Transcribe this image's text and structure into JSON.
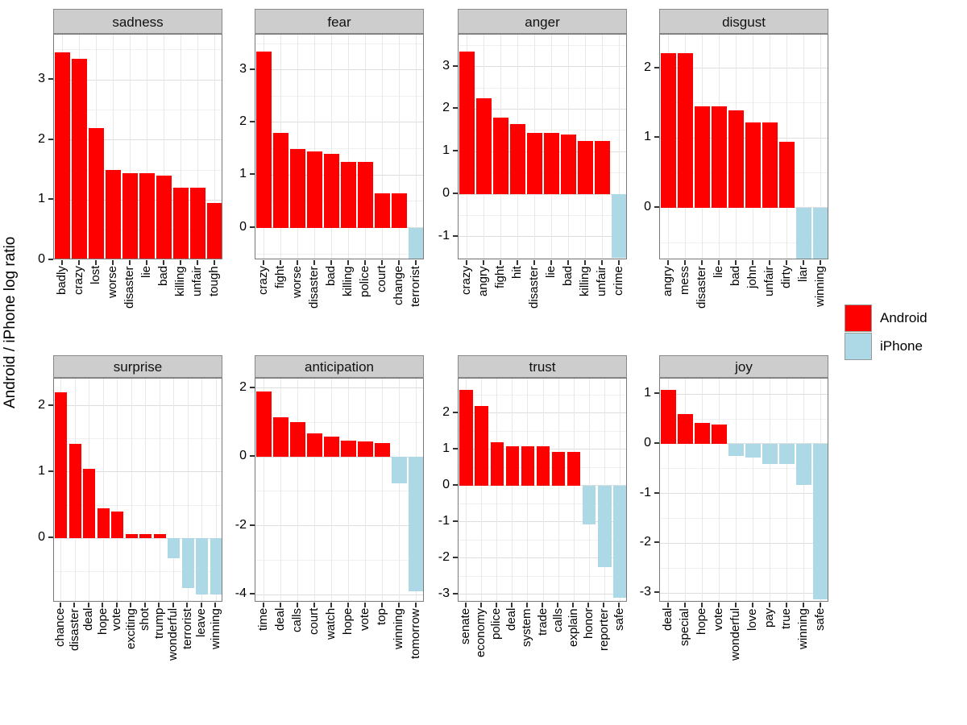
{
  "figure": {
    "ylab": "Android / iPhone log ratio",
    "note": "Faceted bar chart; positive bars = Android (red), negative bars = iPhone (lightblue)",
    "colors": {
      "android": "#FF0000",
      "iphone": "#ADD8E6",
      "strip": "#CDCDCD"
    },
    "legend": {
      "position": "right-middle",
      "items": [
        {
          "label": "Android",
          "color": "#FF0000"
        },
        {
          "label": "iPhone",
          "color": "#ADD8E6"
        }
      ]
    }
  },
  "chart_data": [
    {
      "type": "bar",
      "title": "sadness",
      "categories": [
        "badly",
        "crazy",
        "lost",
        "worse",
        "disaster",
        "lie",
        "bad",
        "killing",
        "unfair",
        "tough"
      ],
      "values": [
        3.45,
        3.35,
        2.2,
        1.5,
        1.45,
        1.45,
        1.4,
        1.2,
        1.2,
        0.95
      ],
      "ylim": [
        0,
        3.75
      ],
      "yticks": [
        0,
        1,
        2,
        3
      ],
      "grid": true
    },
    {
      "type": "bar",
      "title": "fear",
      "categories": [
        "crazy",
        "fight",
        "worse",
        "disaster",
        "bad",
        "killing",
        "police",
        "court",
        "change",
        "terrorist"
      ],
      "values": [
        3.35,
        1.8,
        1.5,
        1.45,
        1.4,
        1.25,
        1.25,
        0.65,
        0.65,
        -0.6
      ],
      "ylim": [
        -0.62,
        3.67
      ],
      "yticks": [
        0,
        1,
        2,
        3
      ],
      "grid": true
    },
    {
      "type": "bar",
      "title": "anger",
      "categories": [
        "crazy",
        "angry",
        "fight",
        "hit",
        "disaster",
        "lie",
        "bad",
        "killing",
        "unfair",
        "crime"
      ],
      "values": [
        3.35,
        2.25,
        1.8,
        1.65,
        1.45,
        1.45,
        1.4,
        1.25,
        1.25,
        -1.5
      ],
      "ylim": [
        -1.55,
        3.75
      ],
      "yticks": [
        -1,
        0,
        1,
        2,
        3
      ],
      "grid": true
    },
    {
      "type": "bar",
      "title": "disgust",
      "categories": [
        "angry",
        "mess",
        "disaster",
        "lie",
        "bad",
        "john",
        "unfair",
        "dirty",
        "liar",
        "winning"
      ],
      "values": [
        2.22,
        2.22,
        1.45,
        1.45,
        1.4,
        1.22,
        1.22,
        0.95,
        -0.73,
        -0.73
      ],
      "ylim": [
        -0.75,
        2.48
      ],
      "yticks": [
        0,
        1,
        2
      ],
      "grid": true
    },
    {
      "type": "bar",
      "title": "surprise",
      "categories": [
        "chance",
        "disaster",
        "deal",
        "hope",
        "vote",
        "exciting",
        "shot",
        "trump",
        "wonderful",
        "terrorist",
        "leave",
        "winning"
      ],
      "values": [
        2.2,
        1.42,
        1.05,
        0.45,
        0.4,
        0.06,
        0.06,
        0.06,
        -0.3,
        -0.75,
        -0.85,
        -0.85
      ],
      "ylim": [
        -0.97,
        2.41
      ],
      "yticks": [
        0,
        1,
        2
      ],
      "grid": true
    },
    {
      "type": "bar",
      "title": "anticipation",
      "categories": [
        "time",
        "deal",
        "calls",
        "court",
        "watch",
        "hope",
        "vote",
        "top",
        "winning",
        "tomorrow"
      ],
      "values": [
        1.9,
        1.15,
        1.0,
        0.68,
        0.58,
        0.48,
        0.45,
        0.4,
        -0.78,
        -3.9
      ],
      "ylim": [
        -4.23,
        2.27
      ],
      "yticks": [
        -4,
        -2,
        0,
        2
      ],
      "grid": true
    },
    {
      "type": "bar",
      "title": "trust",
      "categories": [
        "senate",
        "economy",
        "police",
        "deal",
        "system",
        "trade",
        "calls",
        "explain",
        "honor",
        "reporter",
        "safe"
      ],
      "values": [
        2.63,
        2.2,
        1.2,
        1.08,
        1.08,
        1.08,
        0.92,
        0.92,
        -1.08,
        -2.25,
        -3.1
      ],
      "ylim": [
        -3.23,
        2.95
      ],
      "yticks": [
        -3,
        -2,
        -1,
        0,
        1,
        2
      ],
      "grid": true
    },
    {
      "type": "bar",
      "title": "joy",
      "categories": [
        "deal",
        "special",
        "hope",
        "vote",
        "wonderful",
        "love",
        "pay",
        "true",
        "winning",
        "safe"
      ],
      "values": [
        1.08,
        0.6,
        0.42,
        0.38,
        -0.25,
        -0.28,
        -0.4,
        -0.4,
        -0.82,
        -3.12
      ],
      "ylim": [
        -3.19,
        1.31
      ],
      "yticks": [
        -3,
        -2,
        -1,
        0,
        1
      ],
      "grid": true
    }
  ]
}
